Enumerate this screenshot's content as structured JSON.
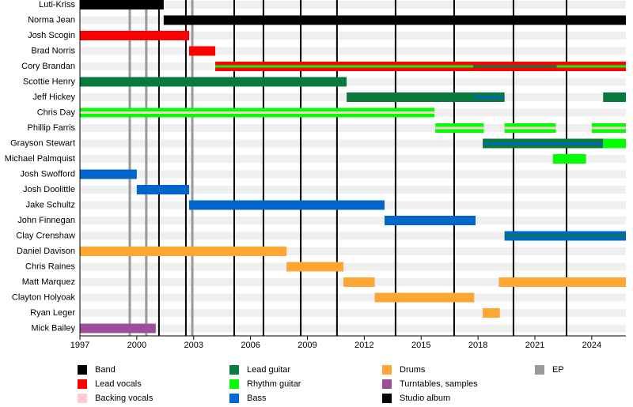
{
  "chart_data": {
    "type": "timeline",
    "xlim": [
      1997,
      2025.8
    ],
    "xticks": [
      1997,
      2000,
      2003,
      2006,
      2009,
      2012,
      2015,
      2018,
      2021,
      2024
    ],
    "roles": [
      {
        "name": "Band",
        "color": "#000000"
      },
      {
        "name": "Lead vocals",
        "color": "#ff0000"
      },
      {
        "name": "Backing vocals",
        "color": "#ffc8d2"
      },
      {
        "name": "Lead guitar",
        "color": "#0a7a3c"
      },
      {
        "name": "Rhythm guitar",
        "color": "#00ff00"
      },
      {
        "name": "Bass",
        "color": "#0066cc"
      },
      {
        "name": "Drums",
        "color": "#ffa533"
      },
      {
        "name": "Turntables, samples",
        "color": "#9b4f9b"
      }
    ],
    "album_legend": {
      "name": "Studio album",
      "color": "#000000"
    },
    "ep_legend": {
      "name": "EP",
      "color": "#999999"
    },
    "albums": [
      2001.17,
      2002.59,
      2005.14,
      2006.68,
      2008.65,
      2010.56,
      2013.65,
      2016.74,
      2019.87,
      2022.67
    ],
    "eps": [
      1999.63,
      2000.5,
      2002.93
    ],
    "members": [
      {
        "name": "Luti-Kriss",
        "bars": [
          {
            "role": "Band",
            "start": 1997,
            "end": 2001.42
          }
        ]
      },
      {
        "name": "Norma Jean",
        "bars": [
          {
            "role": "Band",
            "start": 2001.42,
            "end": 2025.8
          }
        ]
      },
      {
        "name": "Josh Scogin",
        "bars": [
          {
            "role": "Lead vocals",
            "start": 1997,
            "end": 2002.76
          }
        ]
      },
      {
        "name": "Brad Norris",
        "bars": [
          {
            "role": "Lead vocals",
            "start": 2002.76,
            "end": 2004.14
          }
        ]
      },
      {
        "name": "Cory Brandan",
        "bars": [
          {
            "role": "Lead vocals",
            "start": 2004.14,
            "end": 2025.8
          }
        ],
        "stripes": [
          {
            "role": "Rhythm guitar",
            "start": 2004.14,
            "end": 2017.75
          },
          {
            "role": "Lead guitar",
            "start": 2017.75,
            "end": 2022.15
          },
          {
            "role": "Rhythm guitar",
            "start": 2022.15,
            "end": 2025.8
          }
        ]
      },
      {
        "name": "Scottie Henry",
        "bars": [
          {
            "role": "Lead guitar",
            "start": 1997,
            "end": 2011.07
          }
        ]
      },
      {
        "name": "Jeff Hickey",
        "bars": [
          {
            "role": "Lead guitar",
            "start": 2011.07,
            "end": 2019.4
          },
          {
            "role": "Lead guitar",
            "start": 2024.6,
            "end": 2025.8
          }
        ],
        "stripes": [
          {
            "role": "Bass",
            "start": 2017.75,
            "end": 2019.4
          }
        ]
      },
      {
        "name": "Chris Day",
        "bars": [
          {
            "role": "Rhythm guitar",
            "start": 1997,
            "end": 2015.7
          }
        ],
        "stripes": [
          {
            "role": "Backing vocals",
            "start": 1997,
            "end": 2015.7
          }
        ]
      },
      {
        "name": "Phillip Farris",
        "bars": [
          {
            "role": "Rhythm guitar",
            "start": 2015.75,
            "end": 2018.3
          },
          {
            "role": "Rhythm guitar",
            "start": 2019.4,
            "end": 2022.1
          },
          {
            "role": "Rhythm guitar",
            "start": 2024.0,
            "end": 2025.8
          }
        ],
        "stripes": [
          {
            "role": "Backing vocals",
            "start": 2015.75,
            "end": 2018.3
          },
          {
            "role": "Backing vocals",
            "start": 2019.4,
            "end": 2022.1
          },
          {
            "role": "Backing vocals",
            "start": 2024.0,
            "end": 2025.8
          }
        ]
      },
      {
        "name": "Grayson Stewart",
        "bars": [
          {
            "role": "Lead guitar",
            "start": 2018.25,
            "end": 2024.6
          },
          {
            "role": "Rhythm guitar",
            "start": 2024.6,
            "end": 2025.8
          }
        ],
        "stripes": [
          {
            "role": "Bass",
            "start": 2018.25,
            "end": 2024.6
          }
        ]
      },
      {
        "name": "Michael Palmquist",
        "bars": [
          {
            "role": "Rhythm guitar",
            "start": 2021.95,
            "end": 2023.7
          }
        ]
      },
      {
        "name": "Josh Swofford",
        "bars": [
          {
            "role": "Bass",
            "start": 1997,
            "end": 2000
          }
        ]
      },
      {
        "name": "Josh Doolittle",
        "bars": [
          {
            "role": "Bass",
            "start": 2000,
            "end": 2002.76
          }
        ]
      },
      {
        "name": "Jake Schultz",
        "bars": [
          {
            "role": "Bass",
            "start": 2002.76,
            "end": 2013.07
          }
        ]
      },
      {
        "name": "John Finnegan",
        "bars": [
          {
            "role": "Bass",
            "start": 2013.07,
            "end": 2017.87
          }
        ]
      },
      {
        "name": "Clay Crenshaw",
        "bars": [
          {
            "role": "Bass",
            "start": 2019.4,
            "end": 2025.8
          }
        ],
        "stripes": [
          {
            "role": "Lead guitar",
            "start": 2019.4,
            "end": 2025.8
          }
        ]
      },
      {
        "name": "Daniel Davison",
        "bars": [
          {
            "role": "Drums",
            "start": 1997,
            "end": 2007.9
          }
        ]
      },
      {
        "name": "Chris Raines",
        "bars": [
          {
            "role": "Drums",
            "start": 2007.9,
            "end": 2010.9
          }
        ]
      },
      {
        "name": "Matt Marquez",
        "bars": [
          {
            "role": "Drums",
            "start": 2010.9,
            "end": 2012.55
          },
          {
            "role": "Drums",
            "start": 2019.1,
            "end": 2025.8
          }
        ]
      },
      {
        "name": "Clayton Holyoak",
        "bars": [
          {
            "role": "Drums",
            "start": 2012.55,
            "end": 2017.8
          }
        ]
      },
      {
        "name": "Ryan Leger",
        "bars": [
          {
            "role": "Drums",
            "start": 2018.25,
            "end": 2019.15
          }
        ]
      },
      {
        "name": "Mick Bailey",
        "bars": [
          {
            "role": "Turntables, samples",
            "start": 1997,
            "end": 2001.0
          }
        ]
      }
    ]
  }
}
